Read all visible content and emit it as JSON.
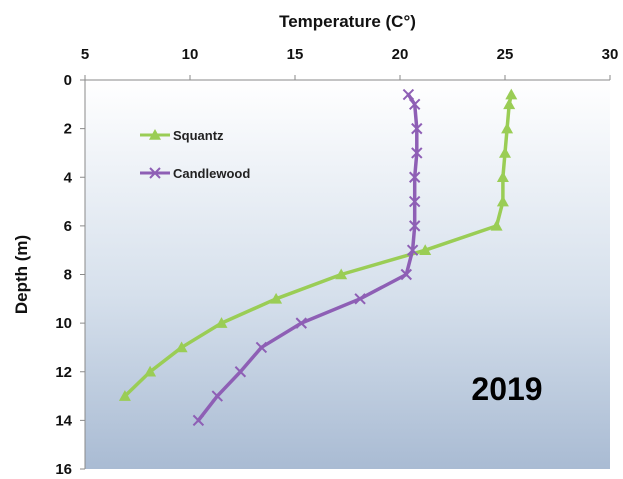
{
  "chart_data": {
    "type": "line",
    "xlabel": "Temperature (C°)",
    "ylabel": "Depth (m)",
    "xlim": [
      5,
      30
    ],
    "ylim": [
      0,
      16
    ],
    "x_ticks": [
      "5",
      "10",
      "15",
      "20",
      "25",
      "30"
    ],
    "y_ticks": [
      "0",
      "2",
      "4",
      "6",
      "8",
      "10",
      "12",
      "14",
      "16"
    ],
    "x_axis_position": "top",
    "y_axis_inverted": true,
    "grid": false,
    "legend_position": "upper-left",
    "annotation": "2019",
    "series": [
      {
        "name": "Squantz",
        "marker": "triangle",
        "color": "#9acd55",
        "points": [
          {
            "temp": 25.3,
            "depth": 0.6
          },
          {
            "temp": 25.2,
            "depth": 1
          },
          {
            "temp": 25.1,
            "depth": 2
          },
          {
            "temp": 25.0,
            "depth": 3
          },
          {
            "temp": 24.9,
            "depth": 4
          },
          {
            "temp": 24.9,
            "depth": 5
          },
          {
            "temp": 24.6,
            "depth": 6
          },
          {
            "temp": 21.2,
            "depth": 7
          },
          {
            "temp": 17.2,
            "depth": 8
          },
          {
            "temp": 14.1,
            "depth": 9
          },
          {
            "temp": 11.5,
            "depth": 10
          },
          {
            "temp": 9.6,
            "depth": 11
          },
          {
            "temp": 8.1,
            "depth": 12
          },
          {
            "temp": 6.9,
            "depth": 13
          }
        ]
      },
      {
        "name": "Candlewood",
        "marker": "x",
        "color": "#8e5fb5",
        "points": [
          {
            "temp": 20.4,
            "depth": 0.6
          },
          {
            "temp": 20.7,
            "depth": 1
          },
          {
            "temp": 20.8,
            "depth": 2
          },
          {
            "temp": 20.8,
            "depth": 3
          },
          {
            "temp": 20.7,
            "depth": 4
          },
          {
            "temp": 20.7,
            "depth": 5
          },
          {
            "temp": 20.7,
            "depth": 6
          },
          {
            "temp": 20.6,
            "depth": 7
          },
          {
            "temp": 20.3,
            "depth": 8
          },
          {
            "temp": 18.1,
            "depth": 9
          },
          {
            "temp": 15.3,
            "depth": 10
          },
          {
            "temp": 13.4,
            "depth": 11
          },
          {
            "temp": 12.4,
            "depth": 12
          },
          {
            "temp": 11.3,
            "depth": 13
          },
          {
            "temp": 10.4,
            "depth": 14
          }
        ]
      }
    ]
  }
}
